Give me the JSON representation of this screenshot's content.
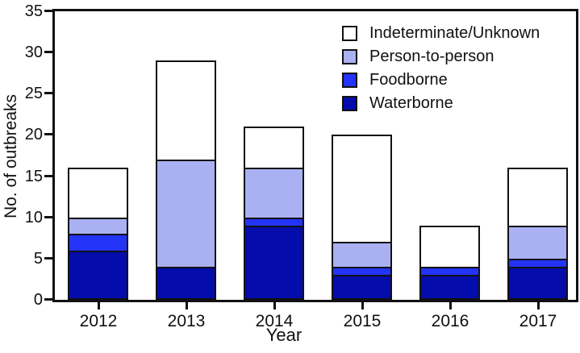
{
  "chart_data": {
    "type": "bar",
    "stacked": true,
    "xlabel": "Year",
    "ylabel": "No. of outbreaks",
    "ylim": [
      0,
      35
    ],
    "yticks": [
      0,
      5,
      10,
      15,
      20,
      25,
      30,
      35
    ],
    "grid": false,
    "categories": [
      "2012",
      "2013",
      "2014",
      "2015",
      "2016",
      "2017"
    ],
    "series": [
      {
        "name": "Waterborne",
        "color": "#040CAB",
        "values": [
          6,
          4,
          9,
          3,
          3,
          4
        ]
      },
      {
        "name": "Foodborne",
        "color": "#2334F7",
        "values": [
          2,
          0,
          1,
          1,
          1,
          1
        ]
      },
      {
        "name": "Person-to-person",
        "color": "#A9B1F2",
        "values": [
          2,
          13,
          6,
          3,
          0,
          4
        ]
      },
      {
        "name": "Indeterminate/Unknown",
        "color": "#FFFFFF",
        "values": [
          6,
          12,
          5,
          13,
          5,
          7
        ]
      }
    ],
    "totals": [
      16,
      29,
      21,
      20,
      9,
      16
    ],
    "legend": {
      "position": "top-right",
      "order": [
        "Indeterminate/Unknown",
        "Person-to-person",
        "Foodborne",
        "Waterborne"
      ]
    },
    "colors": {
      "axis": "#111111",
      "background": "#FFFFFF"
    }
  }
}
